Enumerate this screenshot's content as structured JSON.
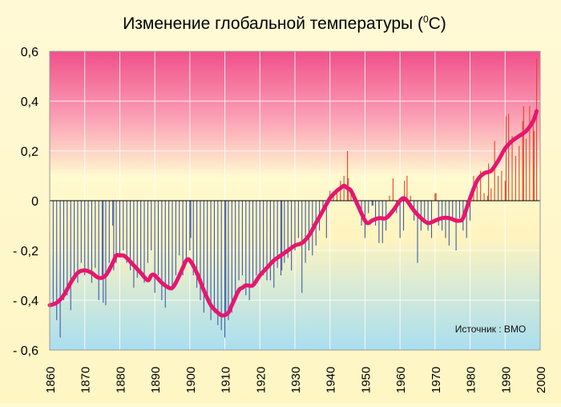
{
  "chart_data": {
    "type": "bar",
    "title": "Изменение глобальной температуры (",
    "title_sup": "0",
    "title_end": "С)",
    "source_note": "Источник : ВМО",
    "xlim": [
      1860,
      2000
    ],
    "ylim": [
      -0.6,
      0.6
    ],
    "y_ticks": [
      0.6,
      0.4,
      0.2,
      0,
      -0.2,
      -0.4,
      -0.6
    ],
    "y_tick_labels": [
      "0,6",
      "0,4",
      "0,2",
      "0",
      "- 0,2",
      "- 0,4",
      "- 0,6"
    ],
    "x_ticks": [
      1860,
      1870,
      1880,
      1890,
      1900,
      1910,
      1920,
      1930,
      1940,
      1950,
      1960,
      1970,
      1980,
      1990,
      2000
    ],
    "x_tick_labels": [
      "1860",
      "1870",
      "1880",
      "1890",
      "1900",
      "1910",
      "1920",
      "1930",
      "1940",
      "1950",
      "1960",
      "1970",
      "1980",
      "1990",
      "2000"
    ],
    "grid": true,
    "colors": {
      "bar_negative": "#3f5aa6",
      "bar_positive": "#e0452a",
      "smooth_line": "#e6166f",
      "grid": "#ffffff",
      "zero_line": "#000000",
      "background_top": "#f0508a",
      "background_mid": "#fffad0",
      "background_bottom": "#a9def0"
    },
    "series": [
      {
        "kind": "bars",
        "x": [
          1861,
          1862,
          1863,
          1864,
          1865,
          1866,
          1867,
          1868,
          1869,
          1870,
          1871,
          1872,
          1873,
          1874,
          1875,
          1876,
          1877,
          1878,
          1879,
          1880,
          1881,
          1882,
          1883,
          1884,
          1885,
          1886,
          1887,
          1888,
          1889,
          1890,
          1891,
          1892,
          1893,
          1894,
          1895,
          1896,
          1897,
          1898,
          1899,
          1900,
          1901,
          1902,
          1903,
          1904,
          1905,
          1906,
          1907,
          1908,
          1909,
          1910,
          1911,
          1912,
          1913,
          1914,
          1915,
          1916,
          1917,
          1918,
          1919,
          1920,
          1921,
          1922,
          1923,
          1924,
          1925,
          1926,
          1927,
          1928,
          1929,
          1930,
          1931,
          1932,
          1933,
          1934,
          1935,
          1936,
          1937,
          1938,
          1939,
          1940,
          1941,
          1942,
          1943,
          1944,
          1945,
          1946,
          1947,
          1948,
          1949,
          1950,
          1951,
          1952,
          1953,
          1954,
          1955,
          1956,
          1957,
          1958,
          1959,
          1960,
          1961,
          1962,
          1963,
          1964,
          1965,
          1966,
          1967,
          1968,
          1969,
          1970,
          1971,
          1972,
          1973,
          1974,
          1975,
          1976,
          1977,
          1978,
          1979,
          1980,
          1981,
          1982,
          1983,
          1984,
          1985,
          1986,
          1987,
          1988,
          1989,
          1990,
          1991,
          1992,
          1993,
          1994,
          1995,
          1996,
          1997,
          1998,
          1999
        ],
        "values": [
          -0.42,
          -0.48,
          -0.55,
          -0.4,
          -0.38,
          -0.44,
          -0.3,
          -0.33,
          -0.25,
          -0.3,
          -0.28,
          -0.33,
          -0.27,
          -0.4,
          -0.3,
          -0.42,
          -0.25,
          -0.1,
          -0.25,
          -0.22,
          -0.2,
          -0.25,
          -0.28,
          -0.35,
          -0.31,
          -0.3,
          -0.33,
          -0.25,
          -0.2,
          -0.37,
          -0.3,
          -0.4,
          -0.43,
          -0.35,
          -0.36,
          -0.3,
          -0.22,
          -0.3,
          -0.25,
          -0.2,
          -0.3,
          -0.35,
          -0.4,
          -0.45,
          -0.38,
          -0.48,
          -0.45,
          -0.5,
          -0.52,
          -0.55,
          -0.48,
          -0.45,
          -0.4,
          -0.32,
          -0.3,
          -0.38,
          -0.4,
          -0.35,
          -0.3,
          -0.3,
          -0.3,
          -0.32,
          -0.32,
          -0.35,
          -0.27,
          -0.3,
          -0.25,
          -0.23,
          -0.28,
          -0.2,
          -0.15,
          -0.37,
          -0.25,
          -0.2,
          -0.22,
          -0.18,
          -0.12,
          -0.05,
          -0.15,
          0.04,
          0.02,
          0.05,
          0.08,
          0.1,
          0.2,
          0.05,
          0.03,
          -0.03,
          -0.1,
          -0.15,
          -0.05,
          -0.02,
          -0.1,
          -0.17,
          -0.17,
          -0.12,
          0.02,
          0.09,
          -0.05,
          -0.15,
          -0.12,
          0.1,
          0.02,
          -0.08,
          -0.25,
          -0.12,
          -0.08,
          -0.12,
          -0.15,
          0.03,
          -0.1,
          -0.12,
          -0.15,
          -0.18,
          -0.08,
          -0.2,
          -0.07,
          -0.12,
          -0.15,
          -0.08,
          0.1,
          0.06,
          0.12,
          0.03,
          0.02,
          0.05,
          0.24,
          0.1,
          0.12,
          0.08,
          0.35,
          0.26,
          0.18,
          0.22,
          0.32,
          0.25,
          0.38,
          0.32,
          0.57
        ],
        "marks": [
          {
            "x": 1875,
            "value": -0.41
          },
          {
            "x": 1878,
            "value": -0.28
          },
          {
            "x": 1900,
            "value": -0.15
          },
          {
            "x": 1910,
            "value": -0.45
          },
          {
            "x": 1926,
            "value": -0.28
          },
          {
            "x": 1945,
            "value": 0.09
          },
          {
            "x": 1952,
            "value": -0.02
          },
          {
            "x": 1961,
            "value": 0.08
          },
          {
            "x": 1970,
            "value": 0.03
          },
          {
            "x": 1985,
            "value": 0.15
          },
          {
            "x": 1990,
            "value": 0.34
          },
          {
            "x": 1995,
            "value": 0.38
          },
          {
            "x": 1998,
            "value": 0.28
          }
        ]
      },
      {
        "kind": "smoothed-line",
        "x": [
          1860,
          1862,
          1864,
          1866,
          1868,
          1870,
          1872,
          1874,
          1876,
          1878,
          1879,
          1880,
          1881,
          1882,
          1884,
          1886,
          1888,
          1889,
          1890,
          1892,
          1894,
          1895,
          1896,
          1898,
          1899,
          1900,
          1902,
          1904,
          1906,
          1908,
          1909,
          1910,
          1911,
          1912,
          1914,
          1915,
          1916,
          1918,
          1920,
          1922,
          1924,
          1926,
          1928,
          1930,
          1932,
          1934,
          1936,
          1938,
          1940,
          1942,
          1943,
          1944,
          1945,
          1946,
          1948,
          1950,
          1951,
          1952,
          1954,
          1956,
          1958,
          1960,
          1961,
          1962,
          1964,
          1966,
          1968,
          1970,
          1972,
          1974,
          1976,
          1977,
          1978,
          1980,
          1982,
          1984,
          1986,
          1988,
          1990,
          1992,
          1994,
          1996,
          1998,
          1999
        ],
        "values": [
          -0.42,
          -0.41,
          -0.38,
          -0.33,
          -0.29,
          -0.28,
          -0.29,
          -0.31,
          -0.3,
          -0.25,
          -0.22,
          -0.22,
          -0.22,
          -0.23,
          -0.26,
          -0.29,
          -0.32,
          -0.3,
          -0.3,
          -0.33,
          -0.35,
          -0.35,
          -0.33,
          -0.27,
          -0.24,
          -0.24,
          -0.29,
          -0.36,
          -0.42,
          -0.45,
          -0.46,
          -0.46,
          -0.45,
          -0.42,
          -0.36,
          -0.35,
          -0.34,
          -0.34,
          -0.3,
          -0.27,
          -0.24,
          -0.22,
          -0.2,
          -0.18,
          -0.17,
          -0.14,
          -0.09,
          -0.04,
          0.01,
          0.04,
          0.05,
          0.06,
          0.05,
          0.04,
          -0.02,
          -0.08,
          -0.09,
          -0.08,
          -0.07,
          -0.07,
          -0.04,
          0.0,
          0.01,
          0.0,
          -0.04,
          -0.07,
          -0.09,
          -0.08,
          -0.07,
          -0.07,
          -0.08,
          -0.08,
          -0.07,
          0.01,
          0.08,
          0.11,
          0.12,
          0.16,
          0.21,
          0.24,
          0.26,
          0.28,
          0.32,
          0.36
        ]
      }
    ]
  }
}
